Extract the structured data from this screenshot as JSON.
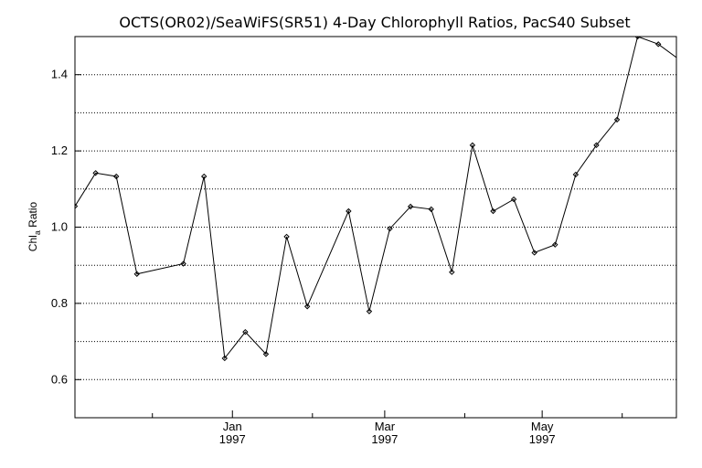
{
  "chart_data": {
    "type": "line",
    "title": "OCTS(OR02)/SeaWiFS(SR51) 4-Day Chlorophyll Ratios, PacS40 Subset",
    "ylabel_main": "Chl",
    "ylabel_sub": "a",
    "ylabel_rest": " Ratio",
    "ylim": [
      0.5,
      1.5
    ],
    "yticks": [
      {
        "value": 0.6,
        "label": "0.6"
      },
      {
        "value": 0.8,
        "label": "0.8"
      },
      {
        "value": 1.0,
        "label": "1.0"
      },
      {
        "value": 1.2,
        "label": "1.2"
      },
      {
        "value": 1.4,
        "label": "1.4"
      }
    ],
    "ygrid": [
      0.6,
      0.7,
      0.8,
      0.9,
      1.0,
      1.1,
      1.2,
      1.3,
      1.4
    ],
    "xlim": [
      "1996-11-01",
      "1997-06-22"
    ],
    "xticks_major": [
      {
        "date": "1997-01-01",
        "label": "Jan",
        "year": "1997"
      },
      {
        "date": "1997-03-01",
        "label": "Mar",
        "year": "1997"
      },
      {
        "date": "1997-05-01",
        "label": "May",
        "year": "1997"
      }
    ],
    "xticks_minor": [
      "1996-12-01",
      "1997-02-01",
      "1997-04-01",
      "1997-06-01"
    ],
    "grid": true,
    "series": [
      {
        "x": [
          "1996-11-01",
          "1996-11-09",
          "1996-11-17",
          "1996-11-25",
          "1996-12-13",
          "1996-12-21",
          "1996-12-29",
          "1997-01-06",
          "1997-01-14",
          "1997-01-22",
          "1997-01-30",
          "1997-02-15",
          "1997-02-23",
          "1997-03-03",
          "1997-03-11",
          "1997-03-19",
          "1997-03-27",
          "1997-04-04",
          "1997-04-12",
          "1997-04-20",
          "1997-04-28",
          "1997-05-06",
          "1997-05-14",
          "1997-05-22",
          "1997-05-30",
          "1997-06-07",
          "1997-06-15",
          "1997-06-23"
        ],
        "y": [
          1.055,
          1.142,
          1.133,
          0.877,
          0.904,
          1.133,
          0.656,
          0.725,
          0.667,
          0.975,
          0.792,
          1.042,
          0.779,
          0.996,
          1.054,
          1.047,
          0.882,
          1.215,
          1.042,
          1.073,
          0.933,
          0.954,
          1.138,
          1.215,
          1.282,
          1.5,
          1.48,
          1.44
        ],
        "color": "#000000"
      }
    ]
  }
}
